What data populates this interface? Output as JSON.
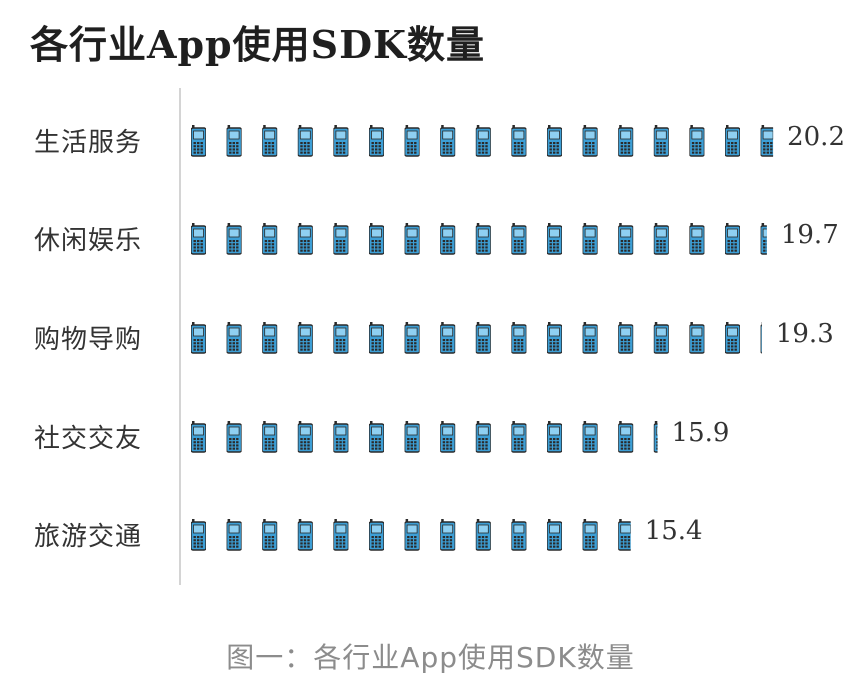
{
  "caption": "图一：各行业App使用SDK数量",
  "chart_data": {
    "type": "bar",
    "title": "各行业App使用SDK数量",
    "categories": [
      "生活服务",
      "休闲娱乐",
      "购物导购",
      "社交交友",
      "旅游交通"
    ],
    "values": [
      20.2,
      19.7,
      19.3,
      15.9,
      15.4
    ],
    "value_labels": [
      "20.2",
      "19.7",
      "19.3",
      "15.9",
      "15.4"
    ],
    "unit_per_icon": 1.2,
    "icon": "mobile-phone-icon",
    "icon_color": "#3d9fd6",
    "icon_outline": "#2a2a2a",
    "grid": false
  }
}
